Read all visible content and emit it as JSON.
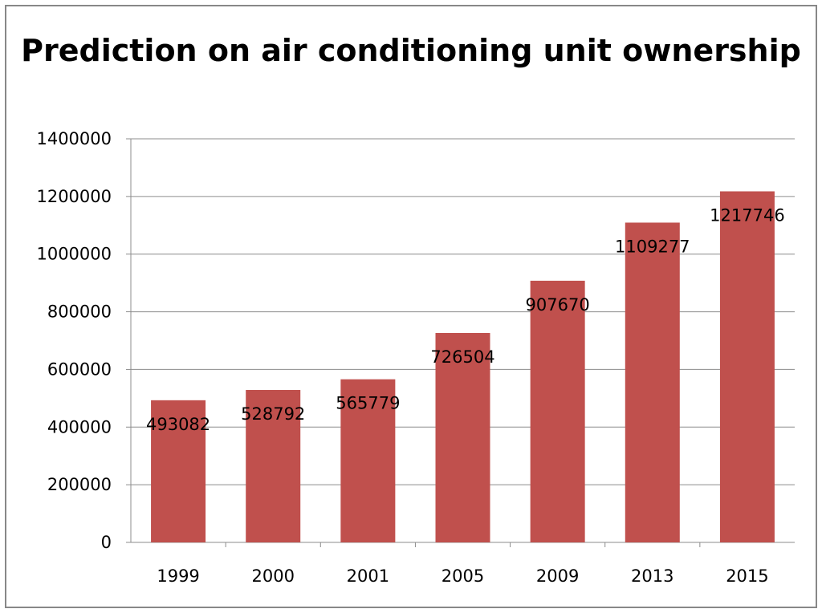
{
  "chart_data": {
    "type": "bar",
    "title": "Prediction on air conditioning unit ownership",
    "categories": [
      "1999",
      "2000",
      "2001",
      "2005",
      "2009",
      "2013",
      "2015"
    ],
    "values": [
      493082,
      528792,
      565779,
      726504,
      907670,
      1109277,
      1217746
    ],
    "data_labels": [
      "493082",
      "528792",
      "565779",
      "726504",
      "907670",
      "1109277",
      "1217746"
    ],
    "xlabel": "",
    "ylabel": "",
    "ylim": [
      0,
      1400000
    ],
    "y_ticks": [
      0,
      200000,
      400000,
      600000,
      800000,
      1000000,
      1200000,
      1400000
    ],
    "y_tick_labels": [
      "0",
      "200000",
      "400000",
      "600000",
      "800000",
      "1000000",
      "1200000",
      "1400000"
    ],
    "grid": true,
    "legend": "none",
    "bar_color": "#c0504d",
    "grid_color": "#8c8c8c"
  }
}
